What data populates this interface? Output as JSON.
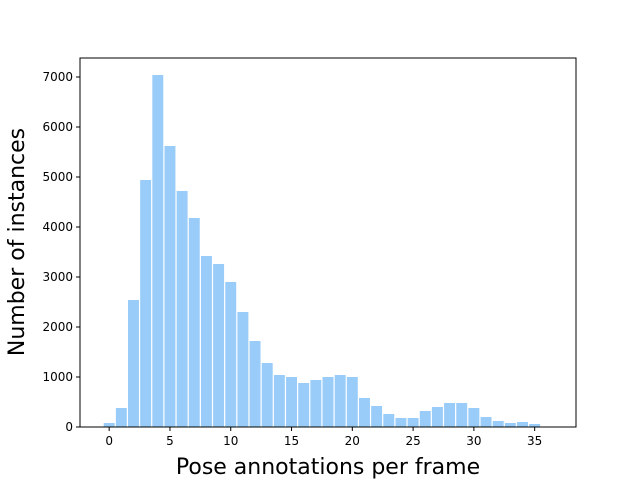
{
  "chart_data": {
    "type": "bar",
    "x": [
      0,
      1,
      2,
      3,
      4,
      5,
      6,
      7,
      8,
      9,
      10,
      11,
      12,
      13,
      14,
      15,
      16,
      17,
      18,
      19,
      20,
      21,
      22,
      23,
      24,
      25,
      26,
      27,
      28,
      29,
      30,
      31,
      32,
      33,
      34,
      35
    ],
    "values": [
      80,
      380,
      2540,
      4940,
      7040,
      5620,
      4720,
      4180,
      3420,
      3260,
      2900,
      2300,
      1720,
      1280,
      1040,
      1000,
      880,
      940,
      1000,
      1040,
      1000,
      580,
      420,
      260,
      180,
      180,
      320,
      400,
      480,
      480,
      380,
      200,
      120,
      80,
      100,
      60
    ],
    "color": "#99ccf9",
    "xlabel": "Pose annotations per frame",
    "ylabel": "Number of instances",
    "xlim": [
      -2.4,
      38.4
    ],
    "ylim": [
      0,
      7380
    ],
    "xticks": [
      0,
      5,
      10,
      15,
      20,
      25,
      30,
      35
    ],
    "yticks": [
      0,
      1000,
      2000,
      3000,
      4000,
      5000,
      6000,
      7000
    ]
  }
}
